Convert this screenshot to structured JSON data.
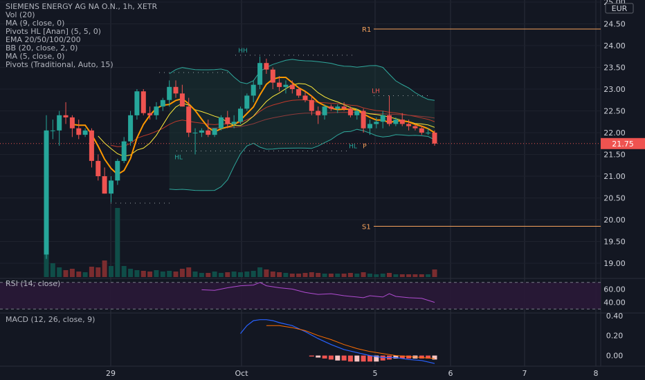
{
  "chart_data": {
    "type": "candlestick",
    "title": "SIEMENS ENERGY AG NA O.N., 1h, XETR",
    "currency": "EUR",
    "indicator_labels": [
      "Vol (20)",
      "MA (9, close, 0)",
      "Pivots HL [Anan] (5, 5, 0)",
      "EMA 20/50/100/200",
      "BB (20, close, 2, 0)",
      "MA (5, close, 0)",
      "Pivots (Traditional, Auto, 15)"
    ],
    "price_axis": {
      "ticks": [
        "25.00",
        "24.50",
        "24.00",
        "23.50",
        "23.00",
        "22.50",
        "22.00",
        "21.50",
        "21.00",
        "20.50",
        "20.00",
        "19.50",
        "19.00"
      ],
      "range": [
        18.8,
        25.0
      ]
    },
    "time_axis": {
      "ticks": [
        "29",
        "Oct",
        "5",
        "6",
        "7",
        "8"
      ]
    },
    "last_price": "21.75",
    "pivot_levels": [
      {
        "name": "R1",
        "value": 24.38
      },
      {
        "name": "S1",
        "value": 19.85
      }
    ],
    "pivot_markers": [
      {
        "text": "HH",
        "value": 23.78
      },
      {
        "text": "HL",
        "value": 21.58
      },
      {
        "text": "LH",
        "value": 22.85
      },
      {
        "text": "HL",
        "value": 21.83
      },
      {
        "text": "P",
        "value": 21.83
      }
    ],
    "candles": [
      {
        "o": 19.2,
        "h": 22.4,
        "l": 19.1,
        "c": 22.05
      },
      {
        "o": 22.05,
        "h": 22.3,
        "l": 21.85,
        "c": 22.05
      },
      {
        "o": 22.05,
        "h": 22.5,
        "l": 21.7,
        "c": 22.4
      },
      {
        "o": 22.4,
        "h": 22.7,
        "l": 22.2,
        "c": 22.35
      },
      {
        "o": 22.35,
        "h": 22.4,
        "l": 21.9,
        "c": 22.1
      },
      {
        "o": 22.1,
        "h": 22.3,
        "l": 21.85,
        "c": 21.95
      },
      {
        "o": 21.95,
        "h": 22.1,
        "l": 21.9,
        "c": 22.05
      },
      {
        "o": 22.05,
        "h": 22.1,
        "l": 21.2,
        "c": 21.35
      },
      {
        "o": 21.35,
        "h": 21.5,
        "l": 20.9,
        "c": 21.0
      },
      {
        "o": 21.0,
        "h": 21.2,
        "l": 20.6,
        "c": 20.6
      },
      {
        "o": 20.6,
        "h": 21.0,
        "l": 20.4,
        "c": 20.9
      },
      {
        "o": 20.9,
        "h": 21.4,
        "l": 20.8,
        "c": 21.35
      },
      {
        "o": 21.35,
        "h": 21.9,
        "l": 21.3,
        "c": 21.8
      },
      {
        "o": 21.8,
        "h": 22.5,
        "l": 21.7,
        "c": 22.4
      },
      {
        "o": 22.4,
        "h": 23.0,
        "l": 22.3,
        "c": 22.95
      },
      {
        "o": 22.95,
        "h": 23.0,
        "l": 22.4,
        "c": 22.45
      },
      {
        "o": 22.45,
        "h": 22.6,
        "l": 22.3,
        "c": 22.4
      },
      {
        "o": 22.4,
        "h": 22.7,
        "l": 22.3,
        "c": 22.6
      },
      {
        "o": 22.6,
        "h": 22.8,
        "l": 22.5,
        "c": 22.75
      },
      {
        "o": 22.75,
        "h": 23.2,
        "l": 22.6,
        "c": 23.05
      },
      {
        "o": 23.05,
        "h": 23.2,
        "l": 22.8,
        "c": 22.9
      },
      {
        "o": 22.9,
        "h": 23.1,
        "l": 22.6,
        "c": 22.6
      },
      {
        "o": 22.6,
        "h": 22.8,
        "l": 21.9,
        "c": 22.0
      },
      {
        "o": 22.0,
        "h": 22.1,
        "l": 21.5,
        "c": 22.0
      },
      {
        "o": 22.0,
        "h": 22.1,
        "l": 21.9,
        "c": 22.05
      },
      {
        "o": 22.05,
        "h": 22.3,
        "l": 21.9,
        "c": 21.95
      },
      {
        "o": 21.95,
        "h": 22.1,
        "l": 21.9,
        "c": 22.1
      },
      {
        "o": 22.1,
        "h": 22.4,
        "l": 22.05,
        "c": 22.35
      },
      {
        "o": 22.35,
        "h": 22.5,
        "l": 22.1,
        "c": 22.2
      },
      {
        "o": 22.2,
        "h": 22.4,
        "l": 22.1,
        "c": 22.25
      },
      {
        "o": 22.25,
        "h": 22.6,
        "l": 22.2,
        "c": 22.55
      },
      {
        "o": 22.55,
        "h": 22.9,
        "l": 22.5,
        "c": 22.85
      },
      {
        "o": 22.85,
        "h": 23.2,
        "l": 22.7,
        "c": 23.1
      },
      {
        "o": 23.1,
        "h": 23.75,
        "l": 23.0,
        "c": 23.6
      },
      {
        "o": 23.6,
        "h": 23.7,
        "l": 23.35,
        "c": 23.45
      },
      {
        "o": 23.45,
        "h": 23.5,
        "l": 23.0,
        "c": 23.15
      },
      {
        "o": 23.15,
        "h": 23.3,
        "l": 22.95,
        "c": 23.05
      },
      {
        "o": 23.05,
        "h": 23.2,
        "l": 22.9,
        "c": 23.1
      },
      {
        "o": 23.1,
        "h": 23.2,
        "l": 22.9,
        "c": 23.0
      },
      {
        "o": 23.0,
        "h": 23.05,
        "l": 22.8,
        "c": 22.85
      },
      {
        "o": 22.85,
        "h": 22.95,
        "l": 22.7,
        "c": 22.75
      },
      {
        "o": 22.75,
        "h": 22.85,
        "l": 22.4,
        "c": 22.5
      },
      {
        "o": 22.5,
        "h": 22.6,
        "l": 22.2,
        "c": 22.4
      },
      {
        "o": 22.4,
        "h": 22.65,
        "l": 22.3,
        "c": 22.6
      },
      {
        "o": 22.6,
        "h": 22.65,
        "l": 22.5,
        "c": 22.55
      },
      {
        "o": 22.55,
        "h": 22.65,
        "l": 22.45,
        "c": 22.6
      },
      {
        "o": 22.6,
        "h": 22.7,
        "l": 22.5,
        "c": 22.55
      },
      {
        "o": 22.55,
        "h": 22.6,
        "l": 22.35,
        "c": 22.4
      },
      {
        "o": 22.4,
        "h": 22.55,
        "l": 22.3,
        "c": 22.5
      },
      {
        "o": 22.5,
        "h": 22.55,
        "l": 22.0,
        "c": 22.1
      },
      {
        "o": 22.1,
        "h": 22.3,
        "l": 21.95,
        "c": 22.2
      },
      {
        "o": 22.2,
        "h": 22.35,
        "l": 22.1,
        "c": 22.25
      },
      {
        "o": 22.25,
        "h": 22.5,
        "l": 22.1,
        "c": 22.4
      },
      {
        "o": 22.4,
        "h": 22.85,
        "l": 22.15,
        "c": 22.2
      },
      {
        "o": 22.2,
        "h": 22.35,
        "l": 22.15,
        "c": 22.3
      },
      {
        "o": 22.3,
        "h": 22.45,
        "l": 22.15,
        "c": 22.2
      },
      {
        "o": 22.2,
        "h": 22.3,
        "l": 22.05,
        "c": 22.15
      },
      {
        "o": 22.15,
        "h": 22.2,
        "l": 22.05,
        "c": 22.1
      },
      {
        "o": 22.1,
        "h": 22.15,
        "l": 21.95,
        "c": 22.0
      },
      {
        "o": 22.0,
        "h": 22.1,
        "l": 21.95,
        "c": 22.0
      },
      {
        "o": 22.0,
        "h": 22.05,
        "l": 21.7,
        "c": 21.75
      }
    ],
    "volume": [
      0.34,
      0.2,
      0.14,
      0.1,
      0.12,
      0.08,
      0.07,
      0.15,
      0.14,
      0.24,
      0.16,
      1.0,
      0.16,
      0.12,
      0.1,
      0.09,
      0.08,
      0.1,
      0.08,
      0.09,
      0.08,
      0.12,
      0.14,
      0.08,
      0.06,
      0.06,
      0.08,
      0.06,
      0.07,
      0.08,
      0.07,
      0.08,
      0.09,
      0.14,
      0.11,
      0.08,
      0.07,
      0.06,
      0.05,
      0.05,
      0.06,
      0.07,
      0.06,
      0.05,
      0.05,
      0.05,
      0.05,
      0.06,
      0.05,
      0.07,
      0.05,
      0.04,
      0.05,
      0.06,
      0.04,
      0.04,
      0.04,
      0.04,
      0.04,
      0.04,
      0.11
    ],
    "rsi": {
      "label": "RSI (14, close)",
      "ticks": [
        "60.00",
        "40.00"
      ],
      "range": [
        25,
        75
      ],
      "band": [
        30,
        70
      ],
      "values": [
        {
          "x": 24,
          "y": 59
        },
        {
          "x": 26,
          "y": 58
        },
        {
          "x": 28,
          "y": 62
        },
        {
          "x": 30,
          "y": 65
        },
        {
          "x": 32,
          "y": 66
        },
        {
          "x": 33,
          "y": 70
        },
        {
          "x": 34,
          "y": 65
        },
        {
          "x": 36,
          "y": 62
        },
        {
          "x": 38,
          "y": 60
        },
        {
          "x": 40,
          "y": 55
        },
        {
          "x": 42,
          "y": 52
        },
        {
          "x": 44,
          "y": 53
        },
        {
          "x": 46,
          "y": 50
        },
        {
          "x": 48,
          "y": 48
        },
        {
          "x": 49,
          "y": 47
        },
        {
          "x": 50,
          "y": 50
        },
        {
          "x": 52,
          "y": 48
        },
        {
          "x": 53,
          "y": 53
        },
        {
          "x": 54,
          "y": 49
        },
        {
          "x": 56,
          "y": 47
        },
        {
          "x": 58,
          "y": 46
        },
        {
          "x": 60,
          "y": 40
        }
      ]
    },
    "macd": {
      "label": "MACD (12, 26, close, 9)",
      "ticks": [
        "0.40",
        "0.20",
        "0.00"
      ],
      "range": [
        -0.1,
        0.42
      ],
      "macd_line": [
        {
          "x": 30,
          "y": 0.22
        },
        {
          "x": 31,
          "y": 0.3
        },
        {
          "x": 32,
          "y": 0.35
        },
        {
          "x": 33,
          "y": 0.36
        },
        {
          "x": 34,
          "y": 0.36
        },
        {
          "x": 35,
          "y": 0.35
        },
        {
          "x": 36,
          "y": 0.33
        },
        {
          "x": 38,
          "y": 0.3
        },
        {
          "x": 40,
          "y": 0.24
        },
        {
          "x": 42,
          "y": 0.17
        },
        {
          "x": 44,
          "y": 0.11
        },
        {
          "x": 46,
          "y": 0.06
        },
        {
          "x": 48,
          "y": 0.03
        },
        {
          "x": 50,
          "y": 0.0
        },
        {
          "x": 52,
          "y": -0.02
        },
        {
          "x": 54,
          "y": -0.02
        },
        {
          "x": 56,
          "y": -0.04
        },
        {
          "x": 58,
          "y": -0.05
        },
        {
          "x": 60,
          "y": -0.08
        }
      ],
      "signal_line": [
        {
          "x": 34,
          "y": 0.3
        },
        {
          "x": 36,
          "y": 0.3
        },
        {
          "x": 38,
          "y": 0.28
        },
        {
          "x": 40,
          "y": 0.25
        },
        {
          "x": 42,
          "y": 0.2
        },
        {
          "x": 44,
          "y": 0.16
        },
        {
          "x": 46,
          "y": 0.11
        },
        {
          "x": 48,
          "y": 0.07
        },
        {
          "x": 50,
          "y": 0.04
        },
        {
          "x": 52,
          "y": 0.02
        },
        {
          "x": 54,
          "y": 0.0
        },
        {
          "x": 56,
          "y": -0.01
        },
        {
          "x": 58,
          "y": -0.02
        },
        {
          "x": 60,
          "y": -0.03
        }
      ],
      "histogram": [
        {
          "x": 41,
          "y": -0.01
        },
        {
          "x": 42,
          "y": -0.02
        },
        {
          "x": 43,
          "y": -0.03
        },
        {
          "x": 44,
          "y": -0.04
        },
        {
          "x": 45,
          "y": -0.05
        },
        {
          "x": 46,
          "y": -0.05
        },
        {
          "x": 47,
          "y": -0.06
        },
        {
          "x": 48,
          "y": -0.06
        },
        {
          "x": 49,
          "y": -0.06
        },
        {
          "x": 50,
          "y": -0.06
        },
        {
          "x": 51,
          "y": -0.06
        },
        {
          "x": 52,
          "y": -0.05
        },
        {
          "x": 53,
          "y": -0.04
        },
        {
          "x": 54,
          "y": -0.03
        },
        {
          "x": 55,
          "y": -0.03
        },
        {
          "x": 56,
          "y": -0.03
        },
        {
          "x": 57,
          "y": -0.03
        },
        {
          "x": 58,
          "y": -0.03
        },
        {
          "x": 59,
          "y": -0.03
        },
        {
          "x": 60,
          "y": -0.04
        }
      ]
    },
    "colors": {
      "up": "#26a69a",
      "down": "#ef5350",
      "volume_up": "#0f4d48",
      "volume_down": "#7a2c2f",
      "ma_orange": "#ff9800",
      "ma_yellow": "#ffeb3b",
      "bb": "#2fa89c",
      "ema": "#c0392b",
      "pivot": "#f7a35c",
      "rsi": "#b04cd1",
      "macd": "#2962ff",
      "signal": "#ff6d00",
      "background": "#131722"
    }
  }
}
